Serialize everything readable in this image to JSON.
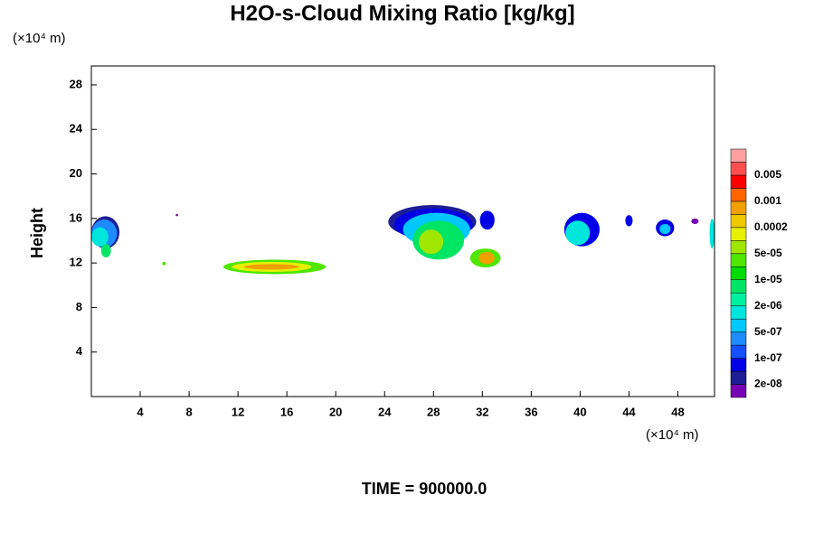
{
  "chart_data": {
    "type": "contour",
    "title": "H2O-s-Cloud Mixing Ratio [kg/kg]",
    "y_unit": "(×10⁴ m)",
    "x_unit": "(×10⁴ m)",
    "ylabel": "Height",
    "footer": "TIME = 900000.0",
    "xlim": [
      0,
      51
    ],
    "ylim": [
      0,
      29.7
    ],
    "xticks": [
      4,
      8,
      12,
      16,
      20,
      24,
      28,
      32,
      36,
      40,
      44,
      48
    ],
    "yticks": [
      4,
      8,
      12,
      16,
      20,
      24,
      28
    ],
    "colorbar": {
      "colors": [
        "#7800b4",
        "#1e1e96",
        "#0000e6",
        "#1450ff",
        "#1e8cff",
        "#00c8ff",
        "#00e6dc",
        "#00f0a0",
        "#00e664",
        "#00dc00",
        "#50e600",
        "#a0e600",
        "#e6f000",
        "#f0c800",
        "#f0a000",
        "#ff6400",
        "#ff0000",
        "#ff5050",
        "#ffa0a0"
      ],
      "ticks": [
        {
          "value": 2e-08,
          "label": "2e-08"
        },
        {
          "value": 1e-07,
          "label": "1e-07"
        },
        {
          "value": 5e-07,
          "label": "5e-07"
        },
        {
          "value": 2e-06,
          "label": "2e-06"
        },
        {
          "value": 1e-05,
          "label": "1e-05"
        },
        {
          "value": 5e-05,
          "label": "5e-05"
        },
        0.0002,
        0.001,
        0.005
      ]
    },
    "cells": [
      {
        "x": [
          0,
          2.3
        ],
        "y": [
          13.3,
          16.2
        ],
        "color": "#1e1e96"
      },
      {
        "x": [
          0,
          2.1
        ],
        "y": [
          13.4,
          15.9
        ],
        "color": "#1e8cff"
      },
      {
        "x": [
          0,
          1.4
        ],
        "y": [
          13.5,
          15.2
        ],
        "color": "#00e6dc"
      },
      {
        "x": [
          0.8,
          1.6
        ],
        "y": [
          12.5,
          13.7
        ],
        "color": "#00e664"
      },
      {
        "x": [
          5.8,
          6.1
        ],
        "y": [
          11.8,
          12.1
        ],
        "color": "#50e600"
      },
      {
        "x": [
          6.9,
          7.1
        ],
        "y": [
          16.2,
          16.4
        ],
        "color": "#7800b4"
      },
      {
        "x": [
          10.8,
          19.2
        ],
        "y": [
          11,
          12.3
        ],
        "color": "#50e600"
      },
      {
        "x": [
          11.5,
          18
        ],
        "y": [
          11.2,
          12.1
        ],
        "color": "#e6f000"
      },
      {
        "x": [
          12.5,
          17
        ],
        "y": [
          11.4,
          11.9
        ],
        "color": "#f0a000"
      },
      {
        "x": [
          24.3,
          31.5
        ],
        "y": [
          14.2,
          17.2
        ],
        "color": "#1e1e96"
      },
      {
        "x": [
          24.8,
          31.2
        ],
        "y": [
          14,
          16.9
        ],
        "color": "#0000e6"
      },
      {
        "x": [
          25.5,
          31
        ],
        "y": [
          13.5,
          16.5
        ],
        "color": "#00c8ff"
      },
      {
        "x": [
          26.3,
          30.5
        ],
        "y": [
          12.3,
          15.8
        ],
        "color": "#00e664"
      },
      {
        "x": [
          26.8,
          28.8
        ],
        "y": [
          12.8,
          15
        ],
        "color": "#a0e600"
      },
      {
        "x": [
          31.8,
          33
        ],
        "y": [
          15,
          16.7
        ],
        "color": "#0000e6"
      },
      {
        "x": [
          31,
          33.5
        ],
        "y": [
          11.6,
          13.3
        ],
        "color": "#50e600"
      },
      {
        "x": [
          31.7,
          33
        ],
        "y": [
          11.9,
          13
        ],
        "color": "#f0a000"
      },
      {
        "x": [
          38.7,
          41.6
        ],
        "y": [
          13.5,
          16.5
        ],
        "color": "#0000e6"
      },
      {
        "x": [
          38.8,
          40.8
        ],
        "y": [
          13.6,
          15.8
        ],
        "color": "#00e6dc"
      },
      {
        "x": [
          43.7,
          44.3
        ],
        "y": [
          15.3,
          16.3
        ],
        "color": "#0000e6"
      },
      {
        "x": [
          46.2,
          47.7
        ],
        "y": [
          14.4,
          15.9
        ],
        "color": "#0000e6"
      },
      {
        "x": [
          46.5,
          47.4
        ],
        "y": [
          14.6,
          15.5
        ],
        "color": "#00c8ff"
      },
      {
        "x": [
          49.1,
          49.7
        ],
        "y": [
          15.5,
          16
        ],
        "color": "#7800b4"
      },
      {
        "x": [
          50.6,
          51
        ],
        "y": [
          13.3,
          16
        ],
        "color": "#00e6dc"
      }
    ]
  }
}
